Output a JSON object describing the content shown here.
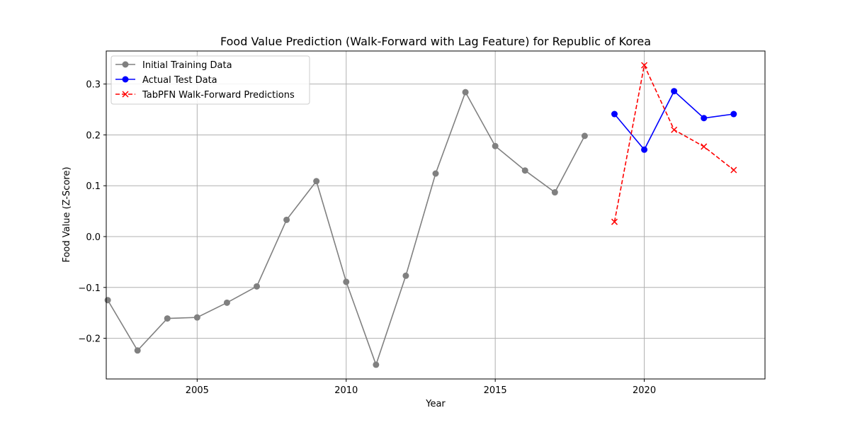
{
  "chart_data": {
    "type": "line",
    "title": "Food Value Prediction (Walk-Forward with Lag Feature) for Republic of Korea",
    "xlabel": "Year",
    "ylabel": "Food Value (Z-Score)",
    "xlim": [
      2001.95,
      2024.05
    ],
    "ylim": [
      -0.28,
      0.365
    ],
    "xticks": [
      2005,
      2010,
      2015,
      2020
    ],
    "yticks": [
      -0.2,
      -0.1,
      0.0,
      0.1,
      0.2,
      0.3
    ],
    "ytick_labels": [
      "−0.2",
      "−0.1",
      "0.0",
      "0.1",
      "0.2",
      "0.3"
    ],
    "grid": true,
    "legend_position": "upper-left",
    "series": [
      {
        "name": "Initial Training Data",
        "color": "#808080",
        "line": "solid",
        "marker": "circle",
        "x": [
          2002,
          2003,
          2004,
          2005,
          2006,
          2007,
          2008,
          2009,
          2010,
          2011,
          2012,
          2013,
          2014,
          2015,
          2016,
          2017,
          2018
        ],
        "y": [
          -0.125,
          -0.224,
          -0.161,
          -0.159,
          -0.13,
          -0.098,
          0.033,
          0.109,
          -0.089,
          -0.252,
          -0.077,
          0.124,
          0.284,
          0.178,
          0.13,
          0.087,
          0.198
        ]
      },
      {
        "name": "Actual Test Data",
        "color": "#0000ff",
        "line": "solid",
        "marker": "circle",
        "x": [
          2019,
          2020,
          2021,
          2022,
          2023
        ],
        "y": [
          0.241,
          0.171,
          0.286,
          0.233,
          0.241
        ]
      },
      {
        "name": "TabPFN Walk-Forward Predictions",
        "color": "#ff0000",
        "line": "dashed",
        "marker": "x",
        "x": [
          2019,
          2020,
          2021,
          2022,
          2023
        ],
        "y": [
          0.029,
          0.337,
          0.21,
          0.177,
          0.131
        ]
      }
    ]
  }
}
